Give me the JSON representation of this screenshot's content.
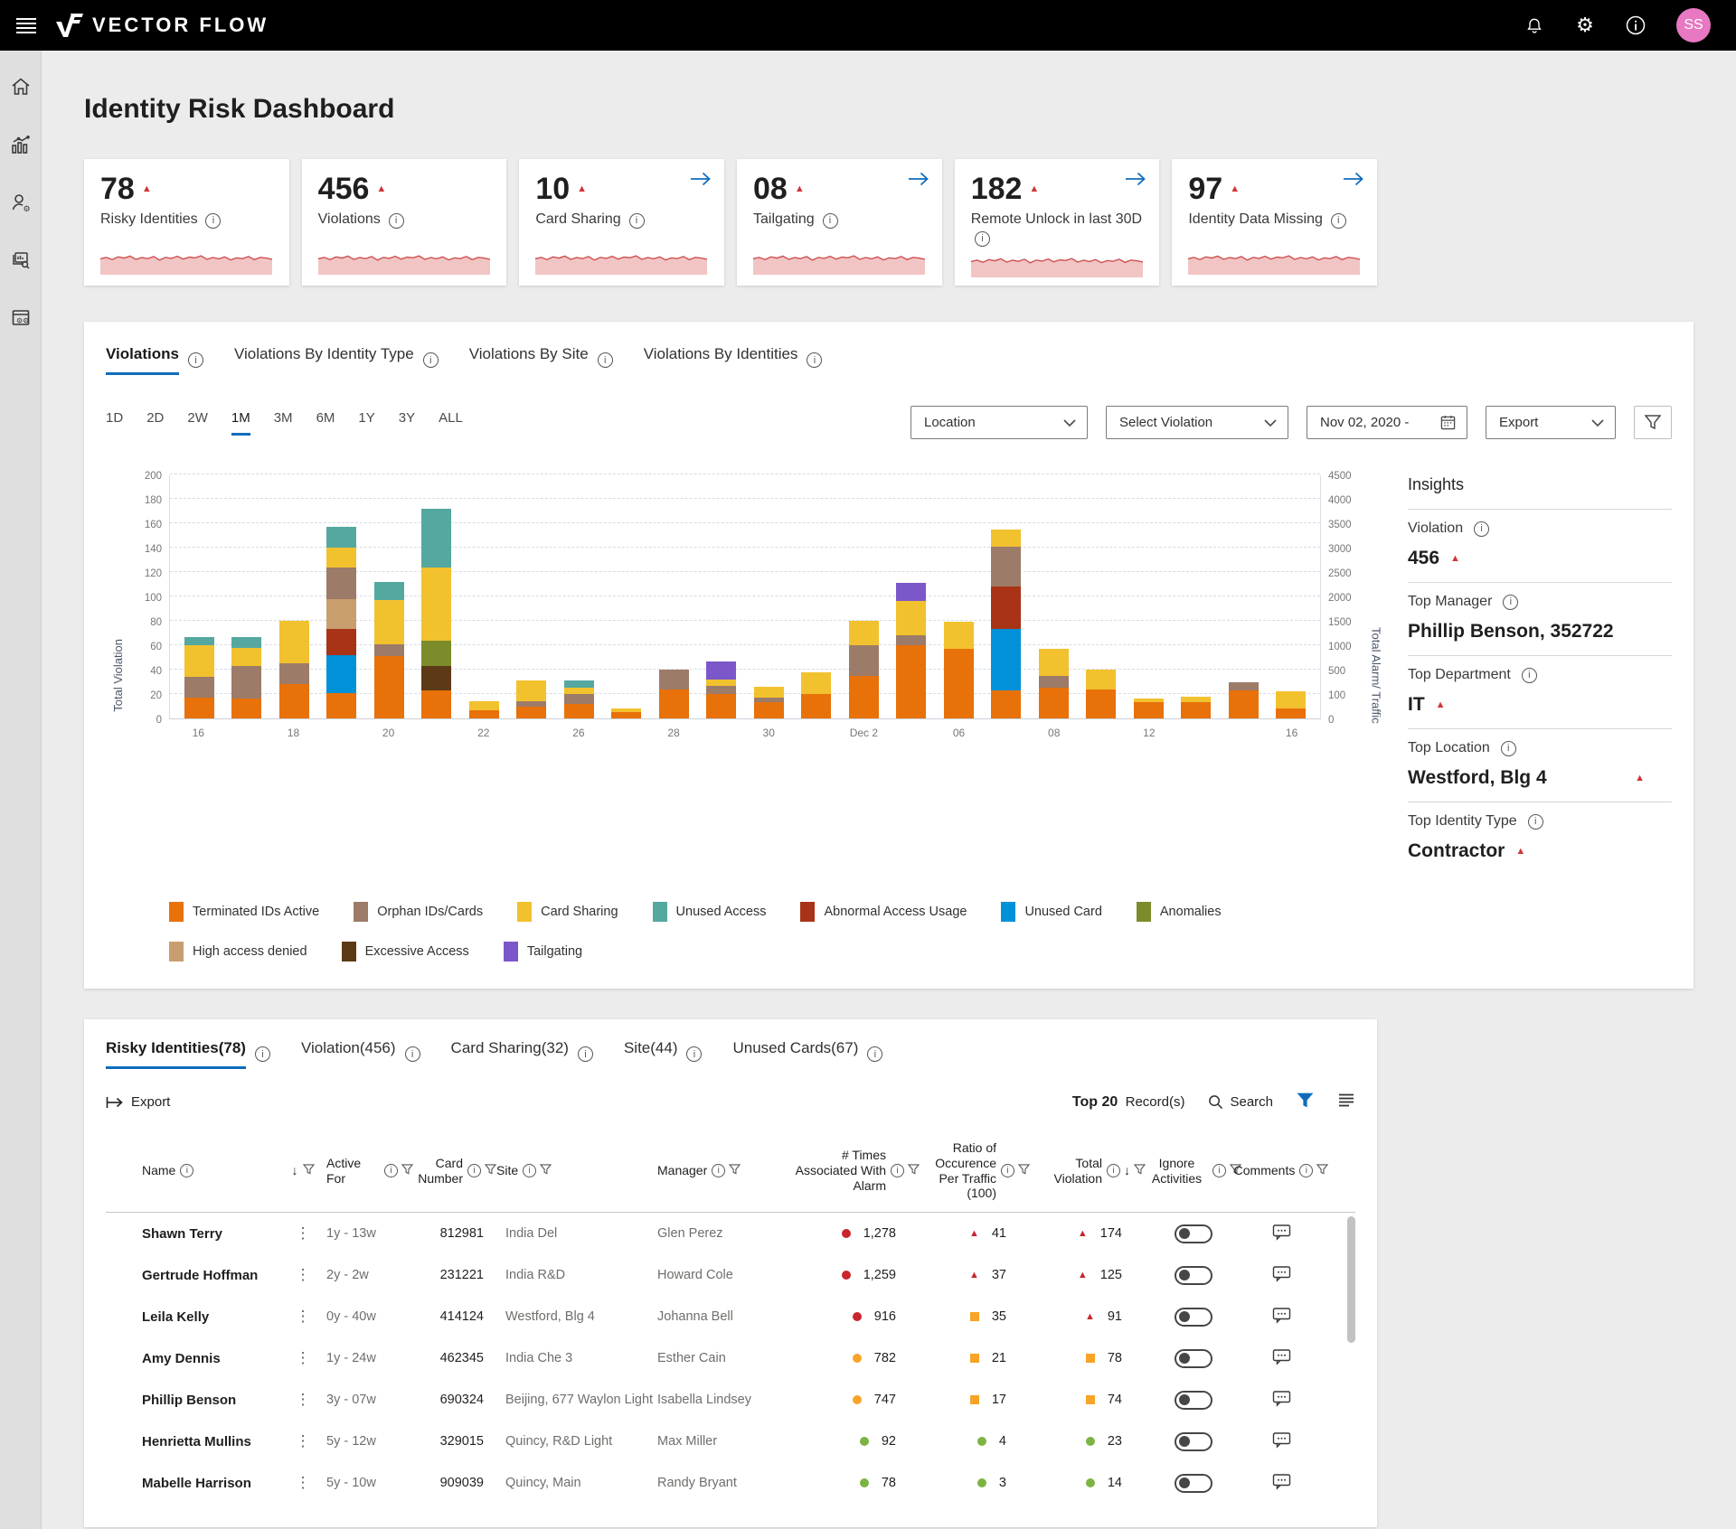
{
  "topbar": {
    "brand": "VECTOR FLOW",
    "avatar_initials": "SS"
  },
  "page": {
    "title": "Identity Risk Dashboard"
  },
  "colors": {
    "accent": "#0F6CBD",
    "alert_red": "#D13438",
    "spark_stroke": "#D05050",
    "spark_fill": "#F2C5C5",
    "avatar_bg": "#E878C1"
  },
  "sparkline": [
    52,
    58,
    49,
    60,
    55,
    63,
    50,
    57,
    53,
    61,
    47,
    58,
    54,
    62,
    51,
    59,
    56,
    64,
    50,
    57,
    52,
    60,
    48,
    56,
    53,
    61,
    49,
    58,
    55,
    50
  ],
  "kpis": [
    {
      "value": "78",
      "label": "Risky Identities",
      "trend": "up",
      "link": false
    },
    {
      "value": "456",
      "label": "Violations",
      "trend": "up",
      "link": false
    },
    {
      "value": "10",
      "label": "Card Sharing",
      "trend": "up",
      "link": true
    },
    {
      "value": "08",
      "label": "Tailgating",
      "trend": "up",
      "link": true
    },
    {
      "value": "182",
      "label": "Remote Unlock in last 30D",
      "trend": "up",
      "link": true
    },
    {
      "value": "97",
      "label": "Identity Data Missing",
      "trend": "up",
      "link": true
    }
  ],
  "chart_tabs": [
    {
      "label": "Violations",
      "active": true
    },
    {
      "label": "Violations By Identity Type",
      "active": false
    },
    {
      "label": "Violations By Site",
      "active": false
    },
    {
      "label": "Violations By Identities",
      "active": false
    }
  ],
  "time_ranges": [
    "1D",
    "2D",
    "2W",
    "1M",
    "3M",
    "6M",
    "1Y",
    "3Y",
    "ALL"
  ],
  "active_time_range": "1M",
  "filters": {
    "location": "Location",
    "violation": "Select Violation",
    "date": "Nov 02, 2020 -",
    "export": "Export"
  },
  "chart_data": {
    "type": "bar",
    "stacked": true,
    "ylabel_left": "Total Violation",
    "ylabel_right": "Total Alarm/ Traffic",
    "ylim_left": [
      0,
      200
    ],
    "yticks_left": [
      0,
      20,
      40,
      60,
      80,
      100,
      120,
      140,
      160,
      180,
      200
    ],
    "yticks_right": [
      0,
      100,
      500,
      1000,
      1500,
      2000,
      2500,
      3000,
      3500,
      4000,
      4500
    ],
    "grid": "dashed horizontal",
    "legend_position": "bottom",
    "categories": [
      "Nov 16",
      "Nov 17",
      "Nov 18",
      "Nov 19",
      "Nov 20",
      "Nov 21",
      "Nov 22",
      "Nov 23",
      "Nov 26",
      "Nov 27",
      "Nov 28",
      "Nov 29",
      "Nov 30",
      "Dec 1",
      "Dec 2",
      "Dec 3",
      "Dec 6",
      "Dec 7",
      "Dec 8",
      "Dec 9",
      "Dec 12",
      "Dec 13",
      "Dec 14",
      "Dec 16"
    ],
    "x_tick_labels": [
      "16",
      "",
      "18",
      "",
      "20",
      "",
      "22",
      "",
      "26",
      "",
      "28",
      "",
      "30",
      "",
      "Dec 2",
      "",
      "06",
      "",
      "08",
      "",
      "12",
      "",
      "",
      "16"
    ],
    "series": [
      {
        "name": "Terminated IDs Active",
        "color": "#E8710A",
        "values": [
          17,
          16,
          28,
          21,
          51,
          23,
          7,
          10,
          12,
          5,
          24,
          20,
          13,
          20,
          35,
          60,
          57,
          23,
          25,
          24,
          13,
          13,
          23,
          8
        ]
      },
      {
        "name": "Unused Card",
        "color": "#0091D8",
        "values": [
          0,
          0,
          0,
          31,
          0,
          0,
          0,
          0,
          0,
          0,
          0,
          0,
          0,
          0,
          0,
          0,
          0,
          50,
          0,
          0,
          0,
          0,
          0,
          0
        ]
      },
      {
        "name": "Abnormal Access Usage",
        "color": "#A93316",
        "values": [
          0,
          0,
          0,
          21,
          0,
          0,
          0,
          0,
          0,
          0,
          0,
          0,
          0,
          0,
          0,
          0,
          0,
          35,
          0,
          0,
          0,
          0,
          0,
          0
        ]
      },
      {
        "name": "Excessive Access",
        "color": "#5C3A17",
        "values": [
          0,
          0,
          0,
          0,
          0,
          20,
          0,
          0,
          0,
          0,
          0,
          0,
          0,
          0,
          0,
          0,
          0,
          0,
          0,
          0,
          0,
          0,
          0,
          0
        ]
      },
      {
        "name": "Anomalies",
        "color": "#7D8C2B",
        "values": [
          0,
          0,
          0,
          0,
          0,
          21,
          0,
          0,
          0,
          0,
          0,
          0,
          0,
          0,
          0,
          0,
          0,
          0,
          0,
          0,
          0,
          0,
          0,
          0
        ]
      },
      {
        "name": "High access denied",
        "color": "#C99E6E",
        "values": [
          0,
          0,
          0,
          25,
          0,
          0,
          0,
          0,
          0,
          0,
          0,
          0,
          0,
          0,
          0,
          0,
          0,
          0,
          0,
          0,
          0,
          0,
          0,
          0
        ]
      },
      {
        "name": "Orphan IDs/Cards",
        "color": "#9C7B68",
        "values": [
          17,
          27,
          17,
          26,
          10,
          0,
          0,
          4,
          8,
          0,
          16,
          7,
          4,
          0,
          25,
          8,
          0,
          33,
          10,
          0,
          0,
          0,
          7,
          0
        ]
      },
      {
        "name": "Card Sharing",
        "color": "#F2C12E",
        "values": [
          26,
          15,
          35,
          16,
          36,
          60,
          7,
          17,
          5,
          3,
          0,
          5,
          9,
          18,
          20,
          28,
          22,
          14,
          22,
          16,
          3,
          5,
          0,
          14
        ]
      },
      {
        "name": "Tailgating",
        "color": "#7B57C9",
        "values": [
          0,
          0,
          0,
          0,
          0,
          0,
          0,
          0,
          0,
          0,
          0,
          15,
          0,
          0,
          0,
          15,
          0,
          0,
          0,
          0,
          0,
          0,
          0,
          0
        ]
      },
      {
        "name": "Unused Access",
        "color": "#55A8A0",
        "values": [
          7,
          9,
          0,
          17,
          15,
          48,
          0,
          0,
          6,
          0,
          0,
          0,
          0,
          0,
          0,
          0,
          0,
          0,
          0,
          0,
          0,
          0,
          0,
          0
        ]
      }
    ],
    "legend_rows": [
      [
        "Terminated IDs Active",
        "Orphan IDs/Cards",
        "Card Sharing",
        "Unused Access",
        "Abnormal Access Usage",
        "Unused Card",
        "Anomalies"
      ],
      [
        "High access denied",
        "Excessive Access",
        "Tailgating"
      ]
    ]
  },
  "insights": {
    "title": "Insights",
    "items": [
      {
        "label": "Violation",
        "value": "456",
        "trend": "up",
        "spread_trend": false
      },
      {
        "label": "Top Manager",
        "value": "Phillip Benson, 352722",
        "trend": null,
        "spread_trend": false
      },
      {
        "label": "Top Department",
        "value": "IT",
        "trend": "up",
        "spread_trend": false
      },
      {
        "label": "Top Location",
        "value": "Westford, Blg 4",
        "trend": "up",
        "spread_trend": true
      },
      {
        "label": "Top Identity Type",
        "value": "Contractor",
        "trend": "up",
        "spread_trend": false
      }
    ]
  },
  "table": {
    "tabs": [
      {
        "label": "Risky Identities(78)",
        "active": true
      },
      {
        "label": "Violation(456)",
        "active": false
      },
      {
        "label": "Card Sharing(32)",
        "active": false
      },
      {
        "label": "Site(44)",
        "active": false
      },
      {
        "label": "Unused Cards(67)",
        "active": false
      }
    ],
    "toolbar": {
      "export_label": "Export",
      "top_label": "Top 20",
      "records_label": "Record(s)",
      "search_label": "Search"
    },
    "level_colors": {
      "red": "#C9252D",
      "orange": "#F7A428",
      "green": "#7DB343"
    },
    "columns": [
      {
        "label": "Name",
        "info": true,
        "sort": true,
        "filter": true,
        "align": "left"
      },
      {
        "label": "Active For",
        "info": true,
        "filter": true,
        "align": "left"
      },
      {
        "label": "Card Number",
        "info": true,
        "filter": true,
        "align": "right"
      },
      {
        "label": "Site",
        "info": true,
        "filter": true,
        "align": "left"
      },
      {
        "label": "Manager",
        "info": true,
        "filter": true,
        "align": "left"
      },
      {
        "label": "# Times Associated With Alarm",
        "info": true,
        "filter": true,
        "align": "right"
      },
      {
        "label": "Ratio of Occurence Per Traffic (100)",
        "info": true,
        "filter": true,
        "align": "right"
      },
      {
        "label": "Total Violation",
        "info": true,
        "sort": true,
        "filter": true,
        "align": "right"
      },
      {
        "label": "Ignore Activities",
        "info": true,
        "filter": true,
        "align": "center"
      },
      {
        "label": "Comments",
        "info": true,
        "filter": true,
        "align": "center"
      }
    ],
    "rows": [
      {
        "name": "Shawn Terry",
        "active_for": "1y - 13w",
        "card_number": "812981",
        "site": "India Del",
        "manager": "Glen Perez",
        "alarm": {
          "value": "1,278",
          "level": "red"
        },
        "ratio": {
          "value": "41",
          "marker": "triangle",
          "level": "red"
        },
        "total": {
          "value": "174",
          "marker": "triangle",
          "level": "red"
        }
      },
      {
        "name": "Gertrude Hoffman",
        "active_for": "2y - 2w",
        "card_number": "231221",
        "site": "India R&D",
        "manager": "Howard Cole",
        "alarm": {
          "value": "1,259",
          "level": "red"
        },
        "ratio": {
          "value": "37",
          "marker": "triangle",
          "level": "red"
        },
        "total": {
          "value": "125",
          "marker": "triangle",
          "level": "red"
        }
      },
      {
        "name": "Leila Kelly",
        "active_for": "0y - 40w",
        "card_number": "414124",
        "site": "Westford, Blg 4",
        "manager": "Johanna Bell",
        "alarm": {
          "value": "916",
          "level": "red"
        },
        "ratio": {
          "value": "35",
          "marker": "square",
          "level": "orange"
        },
        "total": {
          "value": "91",
          "marker": "triangle",
          "level": "red"
        }
      },
      {
        "name": "Amy Dennis",
        "active_for": "1y - 24w",
        "card_number": "462345",
        "site": "India Che 3",
        "manager": "Esther Cain",
        "alarm": {
          "value": "782",
          "level": "orange"
        },
        "ratio": {
          "value": "21",
          "marker": "square",
          "level": "orange"
        },
        "total": {
          "value": "78",
          "marker": "square",
          "level": "orange"
        }
      },
      {
        "name": "Phillip Benson",
        "active_for": "3y - 07w",
        "card_number": "690324",
        "site": "Beijing, 677 Waylon Light",
        "manager": "Isabella Lindsey",
        "alarm": {
          "value": "747",
          "level": "orange"
        },
        "ratio": {
          "value": "17",
          "marker": "square",
          "level": "orange"
        },
        "total": {
          "value": "74",
          "marker": "square",
          "level": "orange"
        }
      },
      {
        "name": "Henrietta Mullins",
        "active_for": "5y - 12w",
        "card_number": "329015",
        "site": "Quincy, R&D Light",
        "manager": "Max Miller",
        "alarm": {
          "value": "92",
          "level": "green"
        },
        "ratio": {
          "value": "4",
          "marker": "circle",
          "level": "green"
        },
        "total": {
          "value": "23",
          "marker": "circle",
          "level": "green"
        }
      },
      {
        "name": "Mabelle Harrison",
        "active_for": "5y - 10w",
        "card_number": "909039",
        "site": "Quincy, Main",
        "manager": "Randy Bryant",
        "alarm": {
          "value": "78",
          "level": "green"
        },
        "ratio": {
          "value": "3",
          "marker": "circle",
          "level": "green"
        },
        "total": {
          "value": "14",
          "marker": "circle",
          "level": "green"
        }
      }
    ]
  }
}
